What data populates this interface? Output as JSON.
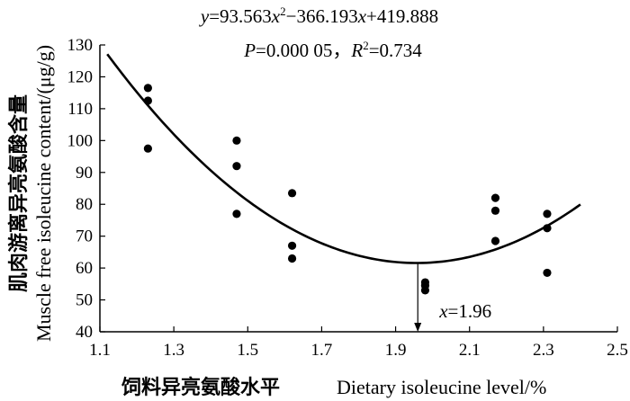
{
  "chart_data": {
    "type": "scatter",
    "equation": "y=93.563x²−366.193x+419.888",
    "stats": "P=0.000 05，R²=0.734",
    "xlabel_zh": "饲料异亮氨酸水平",
    "xlabel_en": "Dietary isoleucine level/%",
    "ylabel_zh": "肌肉游离异亮氨酸含量",
    "ylabel_en": "Muscle free isoleucine content/(μg/g)",
    "xlim": [
      1.1,
      2.5
    ],
    "ylim": [
      40,
      130
    ],
    "x_ticks": [
      "1.1",
      "1.3",
      "1.5",
      "1.7",
      "1.9",
      "2.1",
      "2.3",
      "2.5"
    ],
    "y_ticks": [
      "40",
      "50",
      "60",
      "70",
      "80",
      "90",
      "100",
      "110",
      "120",
      "130"
    ],
    "grid": false,
    "points": [
      {
        "x": 1.23,
        "y": 116.5
      },
      {
        "x": 1.23,
        "y": 112.5
      },
      {
        "x": 1.23,
        "y": 97.5
      },
      {
        "x": 1.47,
        "y": 100.0
      },
      {
        "x": 1.47,
        "y": 92.0
      },
      {
        "x": 1.47,
        "y": 77.0
      },
      {
        "x": 1.62,
        "y": 83.5
      },
      {
        "x": 1.62,
        "y": 67.0
      },
      {
        "x": 1.62,
        "y": 63.0
      },
      {
        "x": 1.98,
        "y": 55.5
      },
      {
        "x": 1.98,
        "y": 54.5
      },
      {
        "x": 1.98,
        "y": 53.0
      },
      {
        "x": 2.17,
        "y": 82.0
      },
      {
        "x": 2.17,
        "y": 78.0
      },
      {
        "x": 2.17,
        "y": 68.5
      },
      {
        "x": 2.31,
        "y": 77.0
      },
      {
        "x": 2.31,
        "y": 72.5
      },
      {
        "x": 2.31,
        "y": 58.5
      }
    ],
    "fit": {
      "a": 93.563,
      "b": -366.193,
      "c": 419.888,
      "x_range": [
        1.12,
        2.4
      ]
    },
    "annotation": {
      "label": "x=1.96",
      "x": 1.96
    }
  }
}
